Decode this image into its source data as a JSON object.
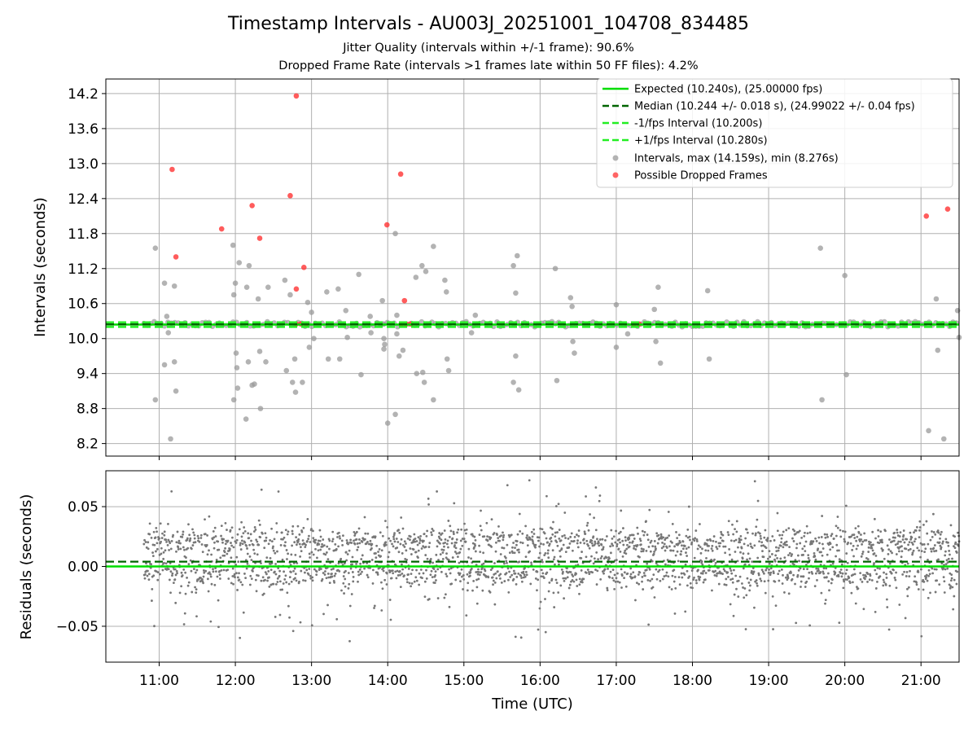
{
  "chart_data": [
    {
      "type": "scatter",
      "panel": "intervals",
      "title": "Timestamp Intervals - AU003J_20251001_104708_834485",
      "subtitle_1": "Jitter Quality (intervals within +/-1 frame): 90.6%",
      "subtitle_2": "Dropped Frame Rate (intervals >1 frames late within 50 FF files): 4.2%",
      "xlabel": "",
      "ylabel": "Intervals (seconds)",
      "xlim_hours": [
        10.3,
        21.5
      ],
      "ylim": [
        7.985,
        14.45
      ],
      "yticks": [
        8.2,
        8.8,
        9.4,
        10.0,
        10.6,
        11.2,
        11.8,
        12.4,
        13.0,
        13.6,
        14.2
      ],
      "ytick_labels": [
        "8.2",
        "8.8",
        "9.4",
        "10.0",
        "10.6",
        "11.2",
        "11.8",
        "12.4",
        "13.0",
        "13.6",
        "14.2"
      ],
      "grid": true,
      "legend_position": "top-right",
      "lines": {
        "expected": {
          "label": "Expected (10.240s), (25.00000 fps)",
          "y": 10.24,
          "color": "#00dd00",
          "style": "solid"
        },
        "median": {
          "label": "Median (10.244 +/- 0.018 s), (24.99022 +/- 0.04 fps)",
          "y": 10.244,
          "color": "#006400",
          "style": "dashed"
        },
        "lower": {
          "label": "-1/fps Interval (10.200s)",
          "y": 10.2,
          "color": "#22ee22",
          "style": "dashed"
        },
        "upper": {
          "label": "+1/fps Interval (10.280s)",
          "y": 10.28,
          "color": "#22ee22",
          "style": "dashed"
        }
      },
      "series": [
        {
          "name": "Intervals, max (14.159s), min (8.276s)",
          "color": "#999999",
          "dense_band": {
            "t_start": 10.8,
            "t_end": 21.5,
            "y_min": 10.2,
            "y_max": 10.29
          },
          "points": [
            [
              10.95,
              11.55
            ],
            [
              10.95,
              8.95
            ],
            [
              11.07,
              10.95
            ],
            [
              11.07,
              9.55
            ],
            [
              11.1,
              10.38
            ],
            [
              11.12,
              10.1
            ],
            [
              11.15,
              8.28
            ],
            [
              11.2,
              10.9
            ],
            [
              11.2,
              9.6
            ],
            [
              11.22,
              9.1
            ],
            [
              11.97,
              11.6
            ],
            [
              11.98,
              10.75
            ],
            [
              12.0,
              10.95
            ],
            [
              12.01,
              9.75
            ],
            [
              11.98,
              8.95
            ],
            [
              12.02,
              9.5
            ],
            [
              12.03,
              9.15
            ],
            [
              12.05,
              11.3
            ],
            [
              12.14,
              8.62
            ],
            [
              12.15,
              10.88
            ],
            [
              12.17,
              9.6
            ],
            [
              12.18,
              11.25
            ],
            [
              12.22,
              9.2
            ],
            [
              12.25,
              9.22
            ],
            [
              12.3,
              10.68
            ],
            [
              12.32,
              9.78
            ],
            [
              12.33,
              8.8
            ],
            [
              12.43,
              10.88
            ],
            [
              12.4,
              9.6
            ],
            [
              12.65,
              11.0
            ],
            [
              12.67,
              9.45
            ],
            [
              12.72,
              10.75
            ],
            [
              12.75,
              9.25
            ],
            [
              12.78,
              9.65
            ],
            [
              12.79,
              9.08
            ],
            [
              12.88,
              9.25
            ],
            [
              12.95,
              10.62
            ],
            [
              12.97,
              9.85
            ],
            [
              13.0,
              10.45
            ],
            [
              13.03,
              10.0
            ],
            [
              13.2,
              10.8
            ],
            [
              13.22,
              9.65
            ],
            [
              13.35,
              10.85
            ],
            [
              13.37,
              9.65
            ],
            [
              13.45,
              10.48
            ],
            [
              13.47,
              10.02
            ],
            [
              13.62,
              11.1
            ],
            [
              13.65,
              9.38
            ],
            [
              13.77,
              10.38
            ],
            [
              13.78,
              10.1
            ],
            [
              13.93,
              10.65
            ],
            [
              13.94,
              10.25
            ],
            [
              13.95,
              10.0
            ],
            [
              13.95,
              9.82
            ],
            [
              13.96,
              9.9
            ],
            [
              14.0,
              8.55
            ],
            [
              14.1,
              11.8
            ],
            [
              14.12,
              10.4
            ],
            [
              14.12,
              10.08
            ],
            [
              14.15,
              9.7
            ],
            [
              14.2,
              9.8
            ],
            [
              14.1,
              8.7
            ],
            [
              14.37,
              11.05
            ],
            [
              14.38,
              9.4
            ],
            [
              14.45,
              11.25
            ],
            [
              14.46,
              9.42
            ],
            [
              14.48,
              9.25
            ],
            [
              14.5,
              11.15
            ],
            [
              14.6,
              11.58
            ],
            [
              14.6,
              8.95
            ],
            [
              14.75,
              11.0
            ],
            [
              14.77,
              10.8
            ],
            [
              14.78,
              9.65
            ],
            [
              14.8,
              9.45
            ],
            [
              15.1,
              10.1
            ],
            [
              15.15,
              10.4
            ],
            [
              15.65,
              11.25
            ],
            [
              15.68,
              10.78
            ],
            [
              15.68,
              9.7
            ],
            [
              15.7,
              11.42
            ],
            [
              15.72,
              9.12
            ],
            [
              15.65,
              9.25
            ],
            [
              16.2,
              11.2
            ],
            [
              16.22,
              9.28
            ],
            [
              16.4,
              10.7
            ],
            [
              16.42,
              10.55
            ],
            [
              16.43,
              9.95
            ],
            [
              16.45,
              9.75
            ],
            [
              17.0,
              10.58
            ],
            [
              17.0,
              9.85
            ],
            [
              17.15,
              10.08
            ],
            [
              17.5,
              10.5
            ],
            [
              17.52,
              9.95
            ],
            [
              17.55,
              10.88
            ],
            [
              17.58,
              9.58
            ],
            [
              18.2,
              10.82
            ],
            [
              18.22,
              9.65
            ],
            [
              19.68,
              11.55
            ],
            [
              19.7,
              8.95
            ],
            [
              20.0,
              11.08
            ],
            [
              20.02,
              9.38
            ],
            [
              21.1,
              8.42
            ],
            [
              21.2,
              10.68
            ],
            [
              21.22,
              9.8
            ],
            [
              21.3,
              8.28
            ],
            [
              21.48,
              10.48
            ],
            [
              21.5,
              10.02
            ]
          ]
        },
        {
          "name": "Possible Dropped Frames",
          "color": "#ff3333",
          "points": [
            [
              11.17,
              12.9
            ],
            [
              11.22,
              11.4
            ],
            [
              11.82,
              11.88
            ],
            [
              12.22,
              12.28
            ],
            [
              12.32,
              11.72
            ],
            [
              12.72,
              12.45
            ],
            [
              12.8,
              14.16
            ],
            [
              12.8,
              10.85
            ],
            [
              12.9,
              11.22
            ],
            [
              12.8,
              10.25
            ],
            [
              12.86,
              10.25
            ],
            [
              12.93,
              10.25
            ],
            [
              13.99,
              11.95
            ],
            [
              14.17,
              12.82
            ],
            [
              14.22,
              10.65
            ],
            [
              14.18,
              10.25
            ],
            [
              14.24,
              10.25
            ],
            [
              14.3,
              10.25
            ],
            [
              17.23,
              10.25
            ],
            [
              17.3,
              10.25
            ],
            [
              21.07,
              12.1
            ],
            [
              21.35,
              12.22
            ]
          ]
        }
      ]
    },
    {
      "type": "scatter",
      "panel": "residuals",
      "xlabel": "Time (UTC)",
      "ylabel": "Residuals (seconds)",
      "xlim_hours": [
        10.3,
        21.5
      ],
      "ylim": [
        -0.08,
        0.08
      ],
      "yticks": [
        -0.05,
        0.0,
        0.05
      ],
      "ytick_labels": [
        "−0.05",
        "0.00",
        "0.05"
      ],
      "xticks_hours": [
        11,
        12,
        13,
        14,
        15,
        16,
        17,
        18,
        19,
        20,
        21
      ],
      "xtick_labels": [
        "11:00",
        "12:00",
        "13:00",
        "14:00",
        "15:00",
        "16:00",
        "17:00",
        "18:00",
        "19:00",
        "20:00",
        "21:00"
      ],
      "grid": true,
      "lines": {
        "zero": {
          "y": 0.0,
          "color": "#00dd00",
          "style": "solid"
        },
        "median": {
          "y": 0.004,
          "color": "#006400",
          "style": "dashed"
        }
      },
      "series": [
        {
          "name": "Residuals",
          "color": "#777777",
          "count": 2600,
          "t_start": 10.8,
          "t_end": 21.5,
          "center": 0.003,
          "spread": 0.025,
          "max": 0.072,
          "min": -0.068
        }
      ]
    }
  ]
}
